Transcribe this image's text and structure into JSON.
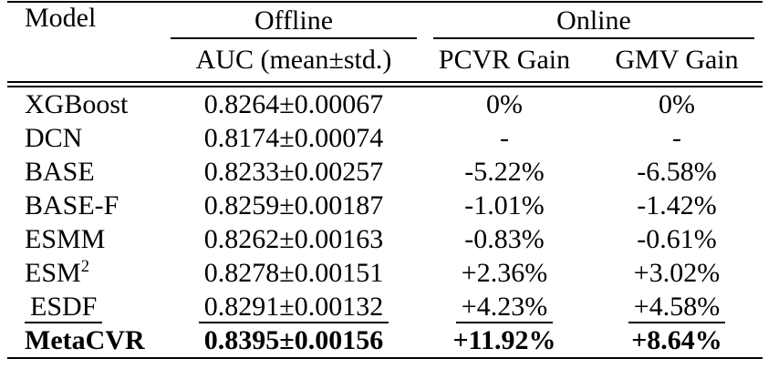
{
  "table": {
    "model_column_header": "Model",
    "group_headers": [
      {
        "label": "Offline"
      },
      {
        "label": "Online"
      }
    ],
    "sub_headers": {
      "auc": "AUC (mean±std.)",
      "pcvr": "PCVR Gain",
      "gmv": "GMV Gain"
    },
    "rows": [
      {
        "model": "XGBoost",
        "sup": "",
        "auc": "0.8264±0.00067",
        "pcvr": "0%",
        "gmv": "0%",
        "bold": false,
        "underline": false
      },
      {
        "model": "DCN",
        "sup": "",
        "auc": "0.8174±0.00074",
        "pcvr": "-",
        "gmv": "-",
        "bold": false,
        "underline": false
      },
      {
        "model": "BASE",
        "sup": "",
        "auc": "0.8233±0.00257",
        "pcvr": "-5.22%",
        "gmv": "-6.58%",
        "bold": false,
        "underline": false
      },
      {
        "model": "BASE-F",
        "sup": "",
        "auc": "0.8259±0.00187",
        "pcvr": "-1.01%",
        "gmv": "-1.42%",
        "bold": false,
        "underline": false
      },
      {
        "model": "ESMM",
        "sup": "",
        "auc": "0.8262±0.00163",
        "pcvr": "-0.83%",
        "gmv": "-0.61%",
        "bold": false,
        "underline": false
      },
      {
        "model": "ESM",
        "sup": "2",
        "auc": "0.8278±0.00151",
        "pcvr": "+2.36%",
        "gmv": "+3.02%",
        "bold": false,
        "underline": false
      },
      {
        "model": "ESDF",
        "sup": "",
        "auc": "0.8291±0.00132",
        "pcvr": "+4.23%",
        "gmv": "+4.58%",
        "bold": false,
        "underline": true
      },
      {
        "model": "MetaCVR",
        "sup": "",
        "auc": "0.8395±0.00156",
        "pcvr": "+11.92%",
        "gmv": "+8.64%",
        "bold": true,
        "underline": false
      }
    ],
    "colors": {
      "text": "#000000",
      "background": "#ffffff",
      "rule": "#000000"
    }
  }
}
